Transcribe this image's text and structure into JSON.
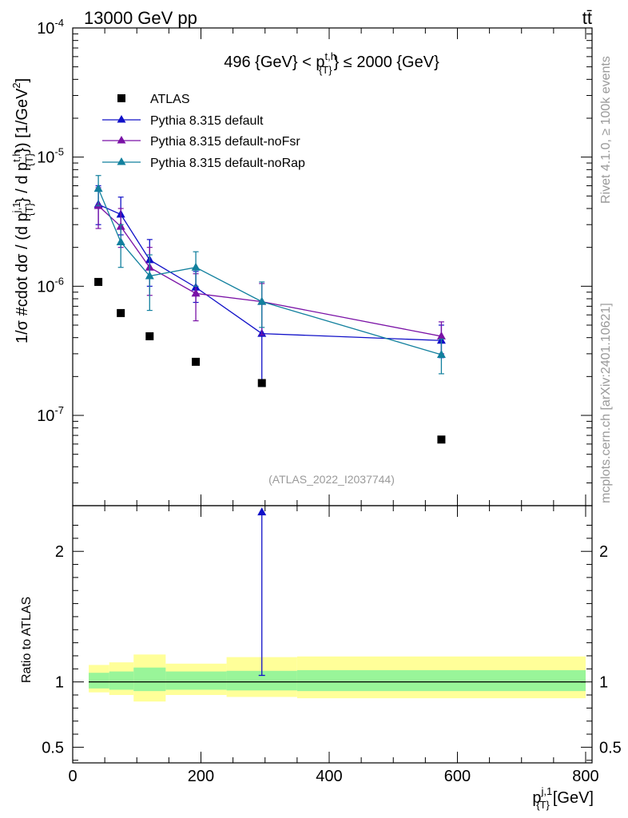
{
  "header": {
    "left": "13000 GeV pp",
    "right": "tt̄"
  },
  "side_labels": {
    "rivet": "Rivet 4.1.0, ≥ 100k events",
    "mcplots": "mcplots.cern.ch [arXiv:2401.10621]"
  },
  "chart_data": {
    "type": "scatter",
    "title": "496 {GeV} < p_{T}^{t,h} ≤ 2000 {GeV}",
    "title_parts": {
      "pre": "496 {GeV} < p",
      "sup": "t,h",
      "sub": "{T}",
      "post": "} ≤ 2000 {GeV}"
    },
    "watermark": "(ATLAS_2022_I2037744)",
    "ylabel": "1/σ #cdot dσ / (d p_{T}^{j,1} / d p_{T}^{t,h}) [1/GeV²]",
    "xlabel": "p_{T}^{j,1} [GeV]",
    "xlabel_parts": {
      "main": "p",
      "sup": "j,1",
      "sub": "{T}",
      "unit": "[GeV]"
    },
    "ylabel_parts": {
      "a": "1/σ #cdot dσ / (d p",
      "b_sup": "j,1",
      "b_sub": "{T}",
      "c": "} / d p",
      "d_sup": "t,h",
      "d_sub": "{T}",
      "e": "}) [1/GeV",
      "e_sup": "2",
      "f": "]"
    },
    "xlim": [
      0,
      810
    ],
    "ylim_main": [
      2e-08,
      0.0001
    ],
    "yscale_main": "log",
    "x_ticks": [
      "0",
      "200",
      "400",
      "600",
      "800"
    ],
    "y_ticks_main": [
      {
        "base": "10",
        "exp": "-7",
        "value": 1e-07
      },
      {
        "base": "10",
        "exp": "-6",
        "value": 1e-06
      },
      {
        "base": "10",
        "exp": "-5",
        "value": 1e-05
      },
      {
        "base": "10",
        "exp": "-4",
        "value": 0.0001
      }
    ],
    "legend": [
      {
        "name": "ATLAS",
        "color": "#000000",
        "marker": "square"
      },
      {
        "name": "Pythia 8.315 default",
        "color": "#1010c8",
        "marker": "triangle"
      },
      {
        "name": "Pythia 8.315 default-noFsr",
        "color": "#7a12a6",
        "marker": "triangle"
      },
      {
        "name": "Pythia 8.315 default-noRap",
        "color": "#12809e",
        "marker": "triangle"
      }
    ],
    "atlas": {
      "x": [
        40,
        75,
        120,
        192,
        295,
        575
      ],
      "y": [
        1.08e-06,
        6.2e-07,
        4.1e-07,
        2.6e-07,
        1.78e-07,
        6.5e-08
      ]
    },
    "series": [
      {
        "name": "Pythia 8.315 default",
        "color": "#1010c8",
        "x": [
          40,
          75,
          120,
          192,
          295,
          575
        ],
        "y": [
          4.3e-06,
          3.6e-06,
          1.6e-06,
          9.8e-07,
          4.3e-07,
          3.8e-07
        ],
        "err_lo": [
          3e-06,
          2.5e-06,
          1e-06,
          7.5e-07,
          1.7e-07,
          2.8e-07
        ],
        "err_hi": [
          6e-06,
          4.9e-06,
          2.3e-06,
          1.3e-06,
          7.5e-07,
          5e-07
        ]
      },
      {
        "name": "Pythia 8.315 default-noFsr",
        "color": "#7a12a6",
        "x": [
          40,
          75,
          120,
          192,
          295,
          575
        ],
        "y": [
          4.2e-06,
          2.9e-06,
          1.4e-06,
          8.8e-07,
          7.6e-07,
          4.1e-07
        ],
        "err_lo": [
          2.8e-06,
          2e-06,
          8.5e-07,
          5.4e-07,
          4.2e-07,
          3e-07
        ],
        "err_hi": [
          5.8e-06,
          4e-06,
          2e-06,
          1.25e-06,
          1.05e-06,
          5.3e-07
        ]
      },
      {
        "name": "Pythia 8.315 default-noRap",
        "color": "#12809e",
        "x": [
          40,
          75,
          120,
          192,
          295,
          575
        ],
        "y": [
          5.7e-06,
          2.2e-06,
          1.2e-06,
          1.4e-06,
          7.6e-07,
          2.95e-07
        ],
        "err_lo": [
          4.2e-06,
          1.4e-06,
          6.5e-07,
          1e-06,
          4.8e-07,
          2.1e-07
        ],
        "err_hi": [
          7.2e-06,
          3e-06,
          1.75e-06,
          1.85e-06,
          1.08e-06,
          3.9e-07
        ]
      }
    ],
    "ratio": {
      "ylabel": "Ratio to ATLAS",
      "ylim": [
        0.38,
        2.35
      ],
      "y_ticks": [
        "0.5",
        "1",
        "2"
      ],
      "y_tick_values": [
        0.5,
        1,
        2
      ],
      "bins": [
        {
          "x_lo": 25,
          "x_hi": 57,
          "stat": [
            0.95,
            1.07
          ],
          "total": [
            0.92,
            1.13
          ]
        },
        {
          "x_lo": 57,
          "x_hi": 95,
          "stat": [
            0.94,
            1.08
          ],
          "total": [
            0.9,
            1.15
          ]
        },
        {
          "x_lo": 95,
          "x_hi": 145,
          "stat": [
            0.93,
            1.11
          ],
          "total": [
            0.85,
            1.21
          ]
        },
        {
          "x_lo": 145,
          "x_hi": 240,
          "stat": [
            0.94,
            1.08
          ],
          "total": [
            0.9,
            1.14
          ]
        },
        {
          "x_lo": 240,
          "x_hi": 350,
          "stat": [
            0.935,
            1.085
          ],
          "total": [
            0.885,
            1.19
          ]
        },
        {
          "x_lo": 350,
          "x_hi": 800,
          "stat": [
            0.93,
            1.09
          ],
          "total": [
            0.875,
            1.195
          ]
        }
      ],
      "points": [
        {
          "series": "Pythia 8.315 default",
          "x": 295,
          "y": 2.3,
          "err_lo": 1.05
        }
      ]
    }
  }
}
